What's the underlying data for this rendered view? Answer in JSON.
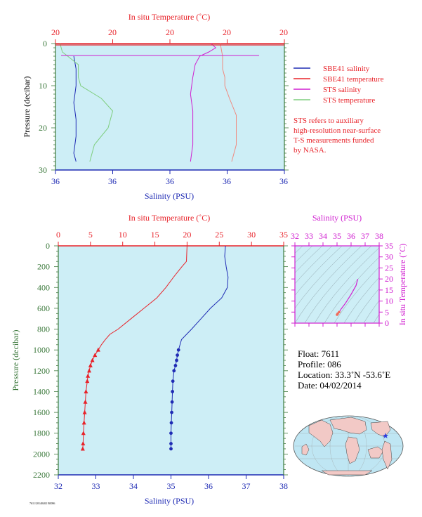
{
  "chart_data": [
    {
      "type": "line",
      "panel": "near-surface",
      "top_axis_label": "In situ Temperature (˚C)",
      "top_tick_labels": [
        "20",
        "20",
        "20",
        "20",
        "20"
      ],
      "bottom_axis_label": "Salinity (PSU)",
      "bottom_tick_labels": [
        "36",
        "36",
        "36",
        "36",
        "36"
      ],
      "ylabel": "Pressure (decibar)",
      "y_tick_labels": [
        "0",
        "10",
        "20",
        "30"
      ],
      "ylim": [
        30,
        0
      ],
      "legend": [
        {
          "name": "SBE41 salinity",
          "color": "#1f2bb4"
        },
        {
          "name": "SBE41 temperature",
          "color": "#e8232a"
        },
        {
          "name": "STS salinity",
          "color": "#d01fd0"
        },
        {
          "name": "STS temperature",
          "color": "#7fce7f"
        }
      ],
      "note_lines": [
        "STS refers to auxiliary",
        "high-resolution near-surface",
        "T-S measurements funded",
        "by NASA."
      ],
      "series": [
        {
          "name": "SBE41 salinity",
          "pressure": [
            3,
            6,
            10,
            14,
            18,
            22,
            26,
            28
          ],
          "value": [
            0.08,
            0.09,
            0.09,
            0.08,
            0.09,
            0.09,
            0.08,
            0.09
          ]
        },
        {
          "name": "STS salinity",
          "pressure": [
            0,
            1,
            2,
            3,
            5,
            8,
            12,
            16,
            20,
            24,
            28
          ],
          "value": [
            0.68,
            0.7,
            0.67,
            0.63,
            0.61,
            0.6,
            0.59,
            0.6,
            0.6,
            0.6,
            0.59
          ]
        },
        {
          "name": "STS temperature",
          "pressure": [
            0,
            2,
            5,
            8,
            10,
            13,
            16,
            20,
            24,
            28
          ],
          "value": [
            0.02,
            0.03,
            0.1,
            0.1,
            0.11,
            0.2,
            0.25,
            0.23,
            0.17,
            0.15
          ]
        },
        {
          "name": "SBE41 temperature",
          "pressure": [
            0,
            3,
            6,
            8,
            10,
            13,
            17,
            20,
            24,
            28
          ],
          "value": [
            0.72,
            0.73,
            0.73,
            0.74,
            0.74,
            0.76,
            0.79,
            0.79,
            0.79,
            0.77
          ]
        }
      ]
    },
    {
      "type": "line",
      "panel": "full-profile",
      "top_axis_label": "In situ Temperature (˚C)",
      "top_tick_labels": [
        "0",
        "5",
        "10",
        "15",
        "20",
        "25",
        "30",
        "35"
      ],
      "xlim_temperature": [
        0,
        35
      ],
      "bottom_axis_label": "Salinity (PSU)",
      "bottom_tick_labels": [
        "32",
        "33",
        "34",
        "35",
        "36",
        "37",
        "38"
      ],
      "xlim_salinity": [
        32,
        38
      ],
      "ylabel": "Pressure (decibar)",
      "y_tick_labels": [
        "0",
        "200",
        "400",
        "600",
        "800",
        "1000",
        "1200",
        "1400",
        "1600",
        "1800",
        "2000",
        "2200"
      ],
      "ylim": [
        2200,
        0
      ],
      "series": [
        {
          "name": "Temperature",
          "color": "#e8232a",
          "pressure": [
            0,
            150,
            200,
            300,
            400,
            500,
            600,
            700,
            800,
            850,
            900,
            950,
            1000,
            1050,
            1100,
            1150,
            1200,
            1250,
            1300,
            1400,
            1500,
            1600,
            1700,
            1800,
            1900,
            1950
          ],
          "value": [
            20.0,
            19.9,
            19.2,
            17.9,
            16.7,
            15.3,
            13.3,
            11.3,
            9.3,
            8.0,
            7.3,
            6.7,
            6.2,
            5.7,
            5.3,
            5.0,
            4.8,
            4.6,
            4.5,
            4.3,
            4.2,
            4.1,
            4.0,
            3.9,
            3.85,
            3.8
          ]
        },
        {
          "name": "Salinity",
          "color": "#1f2bb4",
          "pressure": [
            0,
            100,
            200,
            300,
            400,
            500,
            600,
            700,
            800,
            900,
            1000,
            1050,
            1100,
            1150,
            1200,
            1300,
            1400,
            1500,
            1600,
            1700,
            1800,
            1900,
            1950
          ],
          "value": [
            36.45,
            36.43,
            36.47,
            36.52,
            36.5,
            36.35,
            36.05,
            35.8,
            35.55,
            35.28,
            35.2,
            35.17,
            35.15,
            35.12,
            35.08,
            35.05,
            35.04,
            35.03,
            35.02,
            35.01,
            35.0,
            35.0,
            35.0
          ]
        }
      ]
    },
    {
      "type": "scatter",
      "panel": "t-s-diagram",
      "top_axis_label": "Salinity (PSU)",
      "x_tick_labels": [
        "32",
        "33",
        "34",
        "35",
        "36",
        "37",
        "38"
      ],
      "xlim": [
        32,
        38
      ],
      "right_axis_label": "In situ Temperature (˚C)",
      "y_tick_labels": [
        "0",
        "5",
        "10",
        "15",
        "20",
        "25",
        "30",
        "35"
      ],
      "ylim": [
        0,
        35
      ],
      "series": [
        {
          "name": "T-S",
          "color": "#d01fd0",
          "salinity": [
            36.48,
            36.35,
            36.0,
            35.6,
            35.3,
            35.15,
            35.05,
            35.0
          ],
          "temperature": [
            20.0,
            17.0,
            13.0,
            9.0,
            6.5,
            5.0,
            4.3,
            3.8
          ]
        }
      ]
    }
  ],
  "float_info": {
    "float": "Float:  7611",
    "profile": "Profile:  086",
    "location": "Location:  33.3˚N  -53.6˚E",
    "date": "Date:  04/02/2014"
  },
  "map": {
    "marker": "float-location-star",
    "marker_color": "#2a3be0"
  },
  "footer_code": "7611/20140402 E0086"
}
